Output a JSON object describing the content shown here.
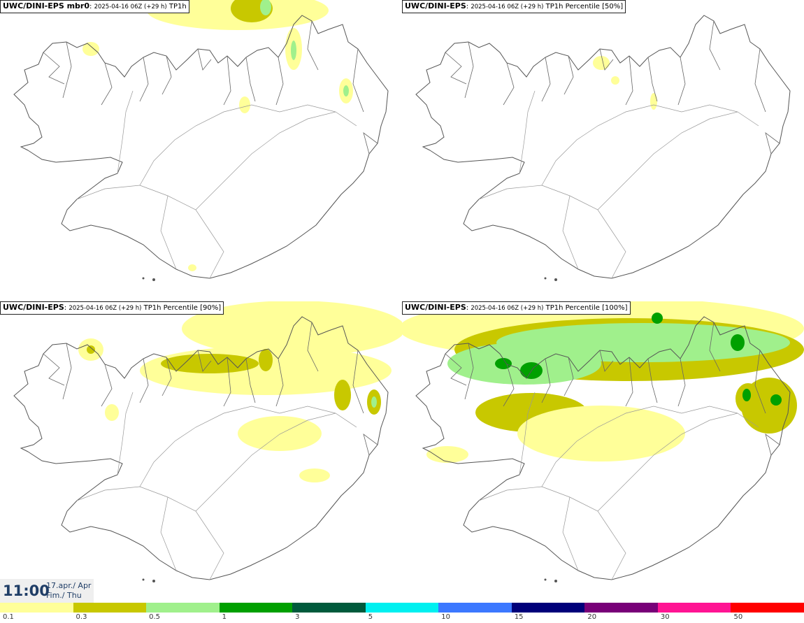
{
  "panels": [
    {
      "model": "UWC/DINI-EPS mbr0",
      "run": "2025-04-16 06Z (+29 h)",
      "variable": "TP1h"
    },
    {
      "model": "UWC/DINI-EPS",
      "run": "2025-04-16 06Z (+29 h)",
      "variable": "TP1h Percentile [50%]"
    },
    {
      "model": "UWC/DINI-EPS",
      "run": "2025-04-16 06Z (+29 h)",
      "variable": "TP1h Percentile [90%]"
    },
    {
      "model": "UWC/DINI-EPS",
      "run": "2025-04-16 06Z (+29 h)",
      "variable": "TP1h Percentile [100%]"
    }
  ],
  "valid_time": {
    "clock": "11:00",
    "date_line": "17.apr./ Apr",
    "day_line": "Fim./ Thu"
  },
  "legend": {
    "colors": [
      "#ffff99",
      "#c8c800",
      "#a0f08c",
      "#00a000",
      "#005a3c",
      "#00f0f0",
      "#3c78ff",
      "#00007a",
      "#780078",
      "#ff1493",
      "#ff0000"
    ],
    "tick_labels": [
      "0.1",
      "0.3",
      "0.5",
      "1",
      "3",
      "5",
      "10",
      "15",
      "20",
      "30",
      "50"
    ]
  }
}
